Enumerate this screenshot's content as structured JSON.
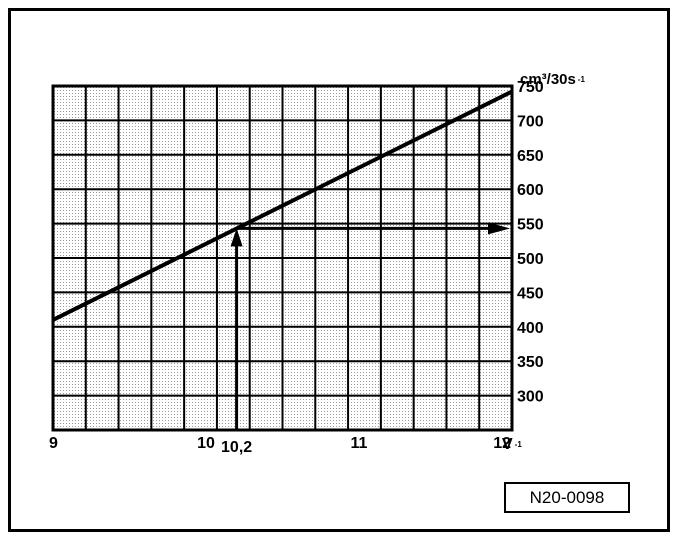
{
  "chart_data": {
    "type": "line",
    "title": "",
    "xlabel": "V",
    "ylabel": "cm³/30s",
    "xlim": [
      9,
      12
    ],
    "ylim": [
      250,
      750
    ],
    "x_ticks": [
      9,
      10,
      11,
      12
    ],
    "x_tick_labels": [
      "9",
      "10",
      "11",
      "12"
    ],
    "y_ticks": [
      300,
      350,
      400,
      450,
      500,
      550,
      600,
      650,
      700,
      750
    ],
    "y_tick_labels": [
      "300",
      "350",
      "400",
      "450",
      "500",
      "550",
      "600",
      "650",
      "700",
      "750"
    ],
    "x_unit_label": "V",
    "x_unit_suffix": "-1",
    "y_unit_label": "cm³/30s",
    "y_unit_suffix": "-1",
    "grid": true,
    "series": [
      {
        "x": [
          9,
          12
        ],
        "y": [
          410,
          742
        ]
      }
    ],
    "annotation": {
      "x": 10.2,
      "y": 543,
      "x_label": "10,2"
    },
    "grid_rows": 10,
    "grid_cols": 14
  },
  "reference_code": "N20-0098",
  "colors": {
    "ink": "#000000",
    "grid": "#000000",
    "background": "#ffffff"
  }
}
